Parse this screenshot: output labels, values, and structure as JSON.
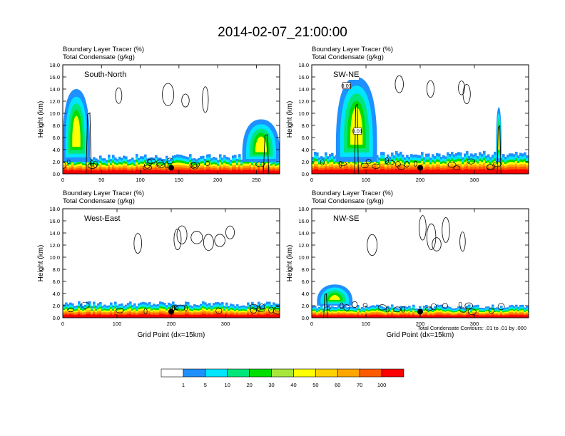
{
  "figure": {
    "title": "2014-02-07_21:00:00",
    "footnote": "Total Condensate Contours: .01 to .01 by .000",
    "colors": {
      "contour": "#000000",
      "marker": "#000000"
    }
  },
  "colorbar": {
    "labels": [
      "1",
      "5",
      "10",
      "20",
      "30",
      "40",
      "50",
      "60",
      "70",
      "100"
    ],
    "colors": [
      "#ffffff",
      "#1e90ff",
      "#00e5ff",
      "#00e67a",
      "#00dd00",
      "#a6e63b",
      "#ffff00",
      "#ffd200",
      "#ffa500",
      "#ff5a00",
      "#ff0000"
    ]
  },
  "chart_data": [
    {
      "type": "heatmap",
      "panel_label": "South-North",
      "subtitle_1": "Boundary Layer Tracer   (%)",
      "subtitle_2": "Total Condensate   (g/kg)",
      "xlabel": "",
      "ylabel": "Height (km)",
      "xlim": [
        0,
        280
      ],
      "ylim": [
        0,
        18
      ],
      "x_ticks": [
        "0",
        "50",
        "100",
        "150",
        "200",
        "250"
      ],
      "x_tick_values": [
        0,
        50,
        100,
        150,
        200,
        250
      ],
      "y_ticks": [
        "0.0",
        "2.0",
        "4.0",
        "6.0",
        "8.0",
        "10.0",
        "12.0",
        "14.0",
        "16.0",
        "18.0"
      ],
      "marker": {
        "x": 140,
        "y": 1.0
      },
      "contour_labels": [],
      "tracer_blobs": [
        {
          "x0": 0,
          "x1": 280,
          "top": 3.0,
          "kind": "bl"
        },
        {
          "x0": 0,
          "x1": 35,
          "top": 14.0,
          "kind": "plume",
          "core_x": 33
        },
        {
          "x0": 232,
          "x1": 280,
          "top": 9.0,
          "kind": "plume",
          "core_x": 262
        }
      ]
    },
    {
      "type": "heatmap",
      "panel_label": "SW-NE",
      "subtitle_1": "Boundary Layer Tracer   (%)",
      "subtitle_2": "Total Condensate   (g/kg)",
      "xlabel": "",
      "ylabel": "Height (km)",
      "xlim": [
        0,
        400
      ],
      "ylim": [
        0,
        18
      ],
      "x_ticks": [
        "0",
        "100",
        "200",
        "300"
      ],
      "x_tick_values": [
        0,
        100,
        200,
        300
      ],
      "y_ticks": [
        "0.0",
        "2.0",
        "4.0",
        "6.0",
        "8.0",
        "10.0",
        "12.0",
        "14.0",
        "16.0",
        "18.0"
      ],
      "marker": {
        "x": 200,
        "y": 1.0
      },
      "contour_labels": [
        "0.01",
        "0.01"
      ],
      "tracer_blobs": [
        {
          "x0": 0,
          "x1": 400,
          "top": 3.5,
          "kind": "bl"
        },
        {
          "x0": 45,
          "x1": 120,
          "top": 16.0,
          "kind": "plume",
          "core_x": 82
        },
        {
          "x0": 340,
          "x1": 350,
          "top": 11.0,
          "kind": "plume",
          "core_x": 345
        }
      ]
    },
    {
      "type": "heatmap",
      "panel_label": "West-East",
      "subtitle_1": "Boundary Layer Tracer   (%)",
      "subtitle_2": "Total Condensate   (g/kg)",
      "xlabel": "Grid Point (dx=15km)",
      "ylabel": "Height (km)",
      "xlim": [
        0,
        400
      ],
      "ylim": [
        0,
        18
      ],
      "x_ticks": [
        "0",
        "100",
        "200",
        "300"
      ],
      "x_tick_values": [
        0,
        100,
        200,
        300
      ],
      "y_ticks": [
        "0.0",
        "2.0",
        "4.0",
        "6.0",
        "8.0",
        "10.0",
        "12.0",
        "14.0",
        "16.0",
        "18.0"
      ],
      "marker": {
        "x": 200,
        "y": 1.0
      },
      "contour_labels": [],
      "tracer_blobs": [
        {
          "x0": 0,
          "x1": 400,
          "top": 2.5,
          "kind": "bl"
        }
      ]
    },
    {
      "type": "heatmap",
      "panel_label": "NW-SE",
      "subtitle_1": "Boundary Layer Tracer   (%)",
      "subtitle_2": "Total Condensate   (g/kg)",
      "xlabel": "Grid Point (dx=15km)",
      "ylabel": "Height (km)",
      "xlim": [
        0,
        400
      ],
      "ylim": [
        0,
        18
      ],
      "x_ticks": [
        "0",
        "100",
        "200",
        "300"
      ],
      "x_tick_values": [
        0,
        100,
        200,
        300
      ],
      "y_ticks": [
        "0.0",
        "2.0",
        "4.0",
        "6.0",
        "8.0",
        "10.0",
        "12.0",
        "14.0",
        "16.0",
        "18.0"
      ],
      "marker": {
        "x": 200,
        "y": 1.0
      },
      "contour_labels": [],
      "tracer_blobs": [
        {
          "x0": 0,
          "x1": 400,
          "top": 2.0,
          "kind": "bl"
        },
        {
          "x0": 10,
          "x1": 75,
          "top": 5.5,
          "kind": "plume",
          "core_x": 25
        }
      ]
    }
  ]
}
